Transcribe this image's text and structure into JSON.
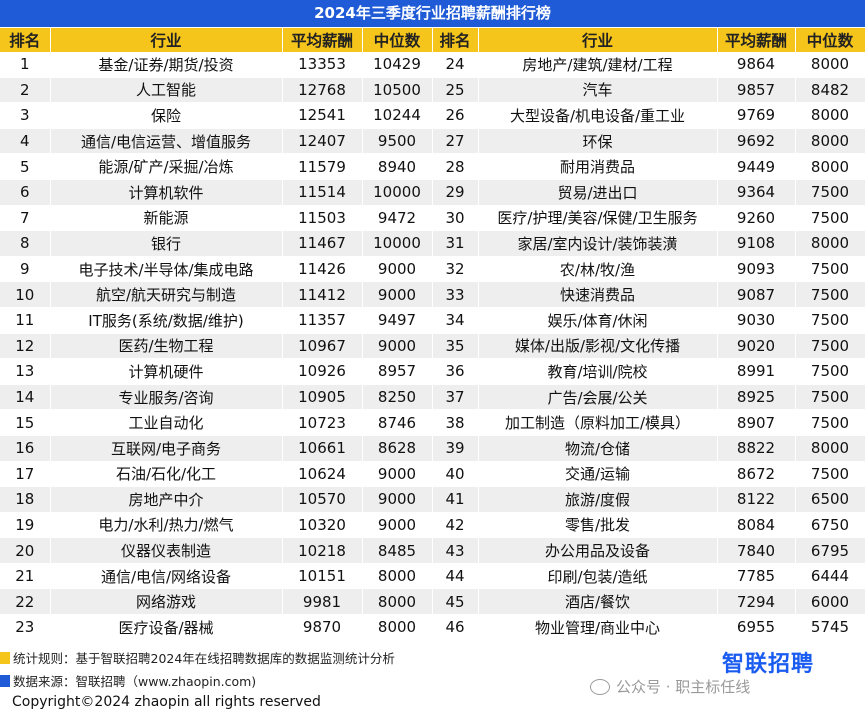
{
  "title": "2024年三季度行业招聘薪酬排行榜",
  "headers": [
    "排名",
    "行业",
    "平均薪酬",
    "中位数",
    "排名",
    "行业",
    "平均薪酬",
    "中位数"
  ],
  "rows": [
    [
      [
        "1",
        "基金/证券/期货/投资",
        "13353",
        "10429"
      ],
      [
        "24",
        "房地产/建筑/建材/工程",
        "9864",
        "8000"
      ]
    ],
    [
      [
        "2",
        "人工智能",
        "12768",
        "10500"
      ],
      [
        "25",
        "汽车",
        "9857",
        "8482"
      ]
    ],
    [
      [
        "3",
        "保险",
        "12541",
        "10244"
      ],
      [
        "26",
        "大型设备/机电设备/重工业",
        "9769",
        "8000"
      ]
    ],
    [
      [
        "4",
        "通信/电信运营、增值服务",
        "12407",
        "9500"
      ],
      [
        "27",
        "环保",
        "9692",
        "8000"
      ]
    ],
    [
      [
        "5",
        "能源/矿产/采掘/冶炼",
        "11579",
        "8940"
      ],
      [
        "28",
        "耐用消费品",
        "9449",
        "8000"
      ]
    ],
    [
      [
        "6",
        "计算机软件",
        "11514",
        "10000"
      ],
      [
        "29",
        "贸易/进出口",
        "9364",
        "7500"
      ]
    ],
    [
      [
        "7",
        "新能源",
        "11503",
        "9472"
      ],
      [
        "30",
        "医疗/护理/美容/保健/卫生服务",
        "9260",
        "7500"
      ]
    ],
    [
      [
        "8",
        "银行",
        "11467",
        "10000"
      ],
      [
        "31",
        "家居/室内设计/装饰装潢",
        "9108",
        "8000"
      ]
    ],
    [
      [
        "9",
        "电子技术/半导体/集成电路",
        "11426",
        "9000"
      ],
      [
        "32",
        "农/林/牧/渔",
        "9093",
        "7500"
      ]
    ],
    [
      [
        "10",
        "航空/航天研究与制造",
        "11412",
        "9000"
      ],
      [
        "33",
        "快速消费品",
        "9087",
        "7500"
      ]
    ],
    [
      [
        "11",
        "IT服务(系统/数据/维护)",
        "11357",
        "9497"
      ],
      [
        "34",
        "娱乐/体育/休闲",
        "9030",
        "7500"
      ]
    ],
    [
      [
        "12",
        "医药/生物工程",
        "10967",
        "9000"
      ],
      [
        "35",
        "媒体/出版/影视/文化传播",
        "9020",
        "7500"
      ]
    ],
    [
      [
        "13",
        "计算机硬件",
        "10926",
        "8957"
      ],
      [
        "36",
        "教育/培训/院校",
        "8991",
        "7500"
      ]
    ],
    [
      [
        "14",
        "专业服务/咨询",
        "10905",
        "8250"
      ],
      [
        "37",
        "广告/会展/公关",
        "8925",
        "7500"
      ]
    ],
    [
      [
        "15",
        "工业自动化",
        "10723",
        "8746"
      ],
      [
        "38",
        "加工制造（原料加工/模具）",
        "8907",
        "7500"
      ]
    ],
    [
      [
        "16",
        "互联网/电子商务",
        "10661",
        "8628"
      ],
      [
        "39",
        "物流/仓储",
        "8822",
        "8000"
      ]
    ],
    [
      [
        "17",
        "石油/石化/化工",
        "10624",
        "9000"
      ],
      [
        "40",
        "交通/运输",
        "8672",
        "7500"
      ]
    ],
    [
      [
        "18",
        "房地产中介",
        "10570",
        "9000"
      ],
      [
        "41",
        "旅游/度假",
        "8122",
        "6500"
      ]
    ],
    [
      [
        "19",
        "电力/水利/热力/燃气",
        "10320",
        "9000"
      ],
      [
        "42",
        "零售/批发",
        "8084",
        "6750"
      ]
    ],
    [
      [
        "20",
        "仪器仪表制造",
        "10218",
        "8485"
      ],
      [
        "43",
        "办公用品及设备",
        "7840",
        "6795"
      ]
    ],
    [
      [
        "21",
        "通信/电信/网络设备",
        "10151",
        "8000"
      ],
      [
        "44",
        "印刷/包装/造纸",
        "7785",
        "6444"
      ]
    ],
    [
      [
        "22",
        "网络游戏",
        "9981",
        "8000"
      ],
      [
        "45",
        "酒店/餐饮",
        "7294",
        "6000"
      ]
    ],
    [
      [
        "23",
        "医疗设备/器械",
        "9870",
        "8000"
      ],
      [
        "46",
        "物业管理/商业中心",
        "6955",
        "5745"
      ]
    ]
  ],
  "footer": {
    "rule_text": "统计规则：基于智联招聘2024年在线招聘数据库的数据监测统计分析",
    "source_text": "数据来源：智联招聘（www.zhaopin.com)",
    "brand": "智联招聘",
    "watermark": "公众号 · 职主标任线",
    "copyright": "Copyright©2024 zhaopin all rights reserved",
    "rule_color": "#f6c51b",
    "source_color": "#1f5bd6"
  },
  "colors": {
    "title_bg": "#1f5bd6",
    "header_bg": "#f6c51b",
    "stripe": "#eeeeee"
  }
}
